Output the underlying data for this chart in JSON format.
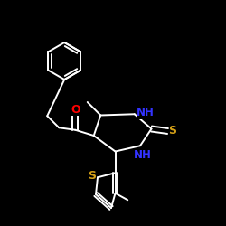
{
  "bg_color": "#000000",
  "bond_color": "#ffffff",
  "atom_colors": {
    "O": "#ff0000",
    "S": "#d4a017",
    "N": "#3333ff",
    "C": "#ffffff"
  },
  "figsize": [
    2.5,
    2.5
  ],
  "dpi": 100,
  "lw": 1.4
}
